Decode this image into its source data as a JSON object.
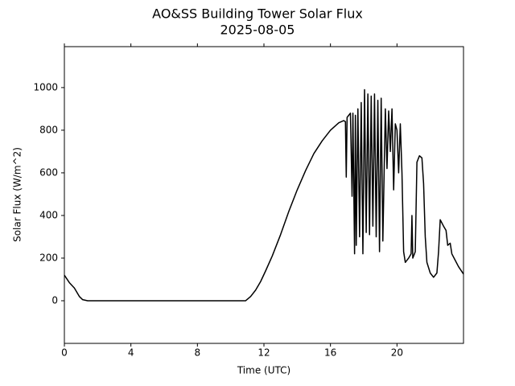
{
  "chart_data": {
    "type": "line",
    "title": "AO&SS Building Tower Solar Flux",
    "subtitle": "2025-08-05",
    "x_label": "Time (UTC)",
    "y_label": "Solar Flux (W/m^2)",
    "xlim": [
      0,
      24
    ],
    "ylim": [
      -200,
      1192
    ],
    "xticks": [
      0,
      4,
      8,
      12,
      16,
      20
    ],
    "yticks": [
      0,
      200,
      400,
      600,
      800,
      1000
    ],
    "grid": false,
    "series": [
      {
        "color": "#000000",
        "x": [
          0,
          0.3,
          0.6,
          0.9,
          1.1,
          1.4,
          3,
          5,
          7,
          9,
          10.9,
          11.2,
          11.5,
          11.8,
          12.1,
          12.5,
          13,
          13.5,
          14,
          14.5,
          15,
          15.5,
          16,
          16.5,
          16.8,
          16.9,
          16.95,
          17.0,
          17.2,
          17.3,
          17.35,
          17.45,
          17.5,
          17.55,
          17.65,
          17.75,
          17.85,
          17.95,
          18.05,
          18.15,
          18.25,
          18.35,
          18.45,
          18.55,
          18.65,
          18.75,
          18.85,
          18.95,
          19.05,
          19.15,
          19.3,
          19.4,
          19.5,
          19.6,
          19.7,
          19.8,
          19.9,
          20.0,
          20.1,
          20.2,
          20.3,
          20.4,
          20.5,
          20.7,
          20.85,
          20.9,
          20.95,
          21.1,
          21.2,
          21.35,
          21.5,
          21.6,
          21.7,
          21.8,
          22.0,
          22.2,
          22.4,
          22.5,
          22.6,
          22.8,
          22.95,
          23.05,
          23.2,
          23.3,
          23.5,
          23.7,
          24
        ],
        "values": [
          120,
          85,
          60,
          20,
          5,
          0,
          0,
          0,
          0,
          0,
          0,
          20,
          50,
          90,
          140,
          210,
          310,
          420,
          520,
          610,
          690,
          750,
          800,
          835,
          845,
          840,
          580,
          860,
          880,
          490,
          880,
          220,
          870,
          260,
          900,
          300,
          930,
          220,
          990,
          320,
          970,
          310,
          960,
          350,
          970,
          300,
          940,
          230,
          950,
          280,
          900,
          620,
          890,
          700,
          900,
          520,
          830,
          800,
          600,
          830,
          600,
          230,
          180,
          200,
          220,
          400,
          200,
          230,
          650,
          680,
          670,
          550,
          300,
          180,
          130,
          110,
          130,
          230,
          380,
          350,
          330,
          260,
          270,
          220,
          190,
          160,
          125
        ]
      }
    ]
  }
}
